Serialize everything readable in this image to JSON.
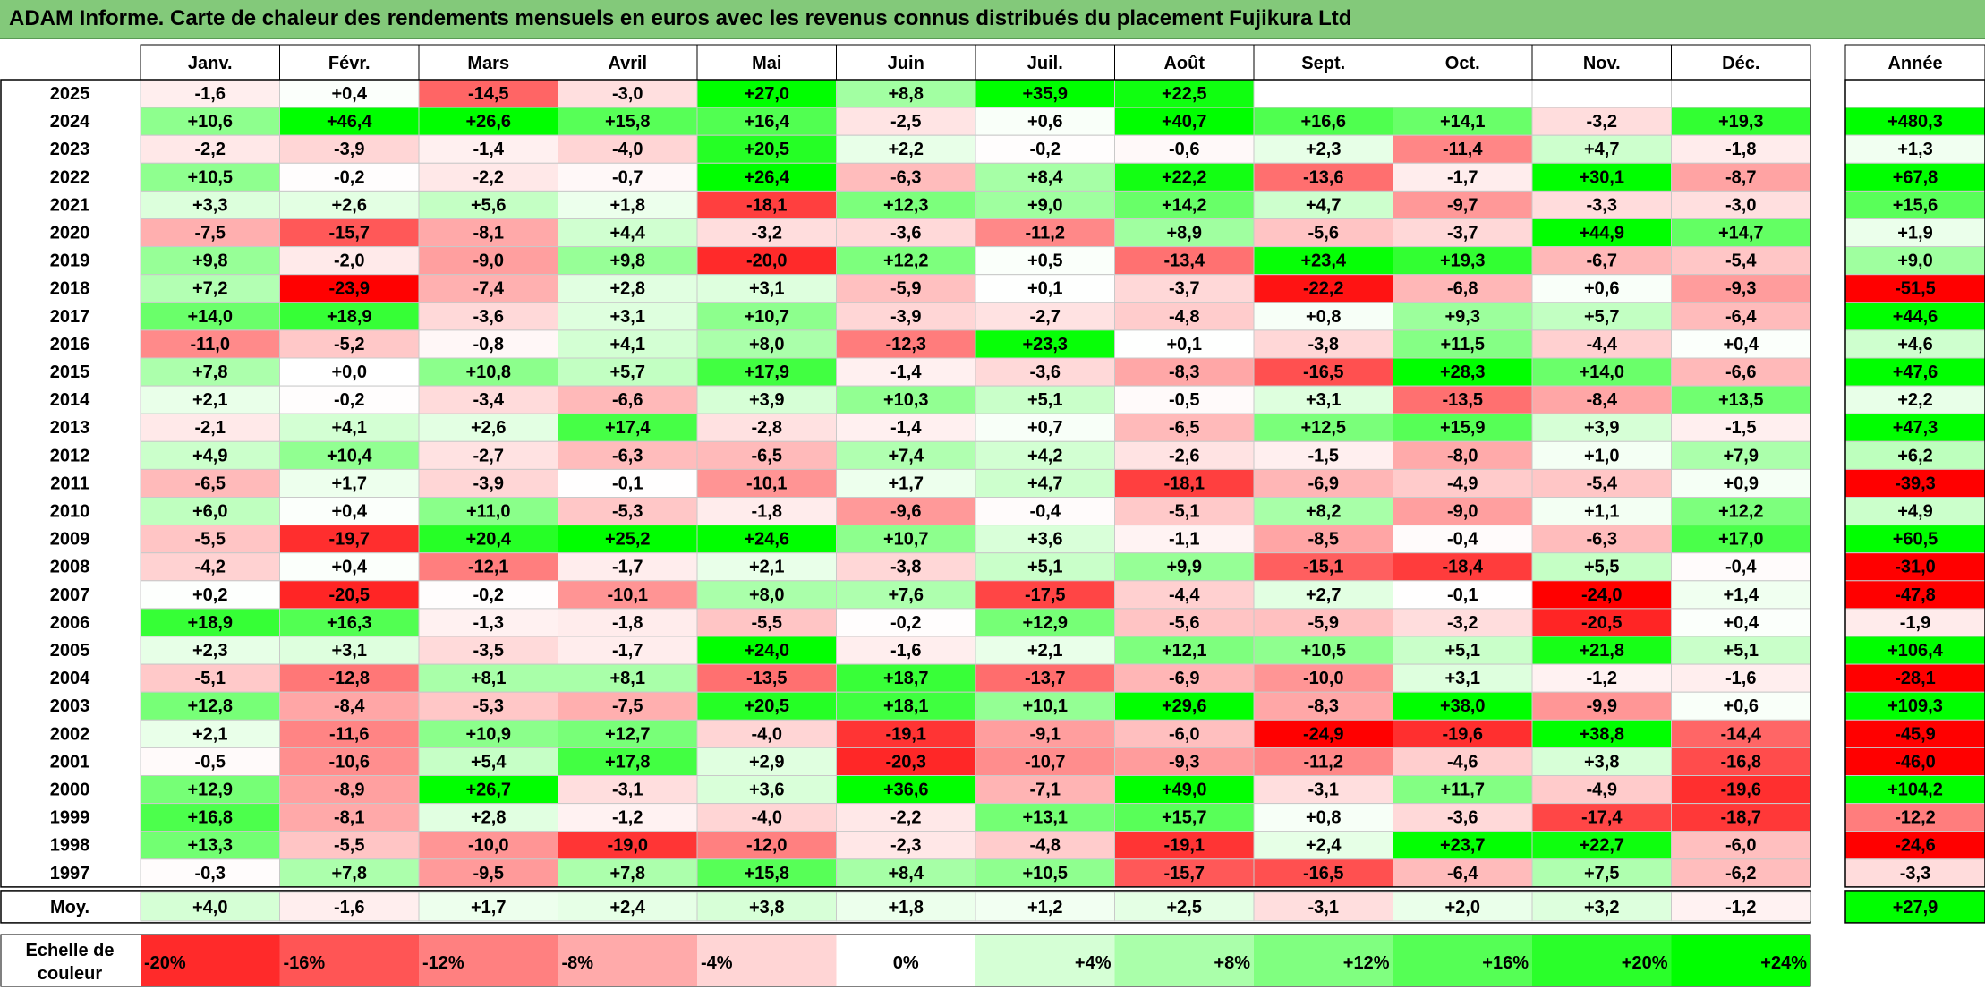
{
  "title": "ADAM Informe. Carte de chaleur des rendements mensuels en euros avec les revenus connus distribués du placement Fujikura Ltd",
  "colors": {
    "title_bar": "#83c97a",
    "negative_max": "#ff0000",
    "neutral": "#ffffff",
    "positive_max": "#00ff00"
  },
  "chart_data": {
    "type": "heatmap",
    "title": "ADAM Informe. Carte de chaleur des rendements mensuels en euros avec les revenus connus distribués du placement Fujikura Ltd",
    "months": [
      "Janv.",
      "Févr.",
      "Mars",
      "Avril",
      "Mai",
      "Juin",
      "Juil.",
      "Août",
      "Sept.",
      "Oct.",
      "Nov.",
      "Déc."
    ],
    "year_header": "Année",
    "avg_label": "Moy.",
    "rows": [
      {
        "year": "2025",
        "values": [
          "-1,6",
          "+0,4",
          "-14,5",
          "-3,0",
          "+27,0",
          "+8,8",
          "+35,9",
          "+22,5",
          "",
          "",
          "",
          ""
        ],
        "annual": ""
      },
      {
        "year": "2024",
        "values": [
          "+10,6",
          "+46,4",
          "+26,6",
          "+15,8",
          "+16,4",
          "-2,5",
          "+0,6",
          "+40,7",
          "+16,6",
          "+14,1",
          "-3,2",
          "+19,3"
        ],
        "annual": "+480,3"
      },
      {
        "year": "2023",
        "values": [
          "-2,2",
          "-3,9",
          "-1,4",
          "-4,0",
          "+20,5",
          "+2,2",
          "-0,2",
          "-0,6",
          "+2,3",
          "-11,4",
          "+4,7",
          "-1,8"
        ],
        "annual": "+1,3"
      },
      {
        "year": "2022",
        "values": [
          "+10,5",
          "-0,2",
          "-2,2",
          "-0,7",
          "+26,4",
          "-6,3",
          "+8,4",
          "+22,2",
          "-13,6",
          "-1,7",
          "+30,1",
          "-8,7"
        ],
        "annual": "+67,8"
      },
      {
        "year": "2021",
        "values": [
          "+3,3",
          "+2,6",
          "+5,6",
          "+1,8",
          "-18,1",
          "+12,3",
          "+9,0",
          "+14,2",
          "+4,7",
          "-9,7",
          "-3,3",
          "-3,0"
        ],
        "annual": "+15,6"
      },
      {
        "year": "2020",
        "values": [
          "-7,5",
          "-15,7",
          "-8,1",
          "+4,4",
          "-3,2",
          "-3,6",
          "-11,2",
          "+8,9",
          "-5,6",
          "-3,7",
          "+44,9",
          "+14,7"
        ],
        "annual": "+1,9"
      },
      {
        "year": "2019",
        "values": [
          "+9,8",
          "-2,0",
          "-9,0",
          "+9,8",
          "-20,0",
          "+12,2",
          "+0,5",
          "-13,4",
          "+23,4",
          "+19,3",
          "-6,7",
          "-5,4"
        ],
        "annual": "+9,0"
      },
      {
        "year": "2018",
        "values": [
          "+7,2",
          "-23,9",
          "-7,4",
          "+2,8",
          "+3,1",
          "-5,9",
          "+0,1",
          "-3,7",
          "-22,2",
          "-6,8",
          "+0,6",
          "-9,3"
        ],
        "annual": "-51,5"
      },
      {
        "year": "2017",
        "values": [
          "+14,0",
          "+18,9",
          "-3,6",
          "+3,1",
          "+10,7",
          "-3,9",
          "-2,7",
          "-4,8",
          "+0,8",
          "+9,3",
          "+5,7",
          "-6,4"
        ],
        "annual": "+44,6"
      },
      {
        "year": "2016",
        "values": [
          "-11,0",
          "-5,2",
          "-0,8",
          "+4,1",
          "+8,0",
          "-12,3",
          "+23,3",
          "+0,1",
          "-3,8",
          "+11,5",
          "-4,4",
          "+0,4"
        ],
        "annual": "+4,6"
      },
      {
        "year": "2015",
        "values": [
          "+7,8",
          "+0,0",
          "+10,8",
          "+5,7",
          "+17,9",
          "-1,4",
          "-3,6",
          "-8,3",
          "-16,5",
          "+28,3",
          "+14,0",
          "-6,6"
        ],
        "annual": "+47,6"
      },
      {
        "year": "2014",
        "values": [
          "+2,1",
          "-0,2",
          "-3,4",
          "-6,6",
          "+3,9",
          "+10,3",
          "+5,1",
          "-0,5",
          "+3,1",
          "-13,5",
          "-8,4",
          "+13,5"
        ],
        "annual": "+2,2"
      },
      {
        "year": "2013",
        "values": [
          "-2,1",
          "+4,1",
          "+2,6",
          "+17,4",
          "-2,8",
          "-1,4",
          "+0,7",
          "-6,5",
          "+12,5",
          "+15,9",
          "+3,9",
          "-1,5"
        ],
        "annual": "+47,3"
      },
      {
        "year": "2012",
        "values": [
          "+4,9",
          "+10,4",
          "-2,7",
          "-6,3",
          "-6,5",
          "+7,4",
          "+4,2",
          "-2,6",
          "-1,5",
          "-8,0",
          "+1,0",
          "+7,9"
        ],
        "annual": "+6,2"
      },
      {
        "year": "2011",
        "values": [
          "-6,5",
          "+1,7",
          "-3,9",
          "-0,1",
          "-10,1",
          "+1,7",
          "+4,7",
          "-18,1",
          "-6,9",
          "-4,9",
          "-5,4",
          "+0,9"
        ],
        "annual": "-39,3"
      },
      {
        "year": "2010",
        "values": [
          "+6,0",
          "+0,4",
          "+11,0",
          "-5,3",
          "-1,8",
          "-9,6",
          "-0,4",
          "-5,1",
          "+8,2",
          "-9,0",
          "+1,1",
          "+12,2"
        ],
        "annual": "+4,9"
      },
      {
        "year": "2009",
        "values": [
          "-5,5",
          "-19,7",
          "+20,4",
          "+25,2",
          "+24,6",
          "+10,7",
          "+3,6",
          "-1,1",
          "-8,5",
          "-0,4",
          "-6,3",
          "+17,0"
        ],
        "annual": "+60,5"
      },
      {
        "year": "2008",
        "values": [
          "-4,2",
          "+0,4",
          "-12,1",
          "-1,7",
          "+2,1",
          "-3,8",
          "+5,1",
          "+9,9",
          "-15,1",
          "-18,4",
          "+5,5",
          "-0,4"
        ],
        "annual": "-31,0"
      },
      {
        "year": "2007",
        "values": [
          "+0,2",
          "-20,5",
          "-0,2",
          "-10,1",
          "+8,0",
          "+7,6",
          "-17,5",
          "-4,4",
          "+2,7",
          "-0,1",
          "-24,0",
          "+1,4"
        ],
        "annual": "-47,8"
      },
      {
        "year": "2006",
        "values": [
          "+18,9",
          "+16,3",
          "-1,3",
          "-1,8",
          "-5,5",
          "-0,2",
          "+12,9",
          "-5,6",
          "-5,9",
          "-3,2",
          "-20,5",
          "+0,4"
        ],
        "annual": "-1,9"
      },
      {
        "year": "2005",
        "values": [
          "+2,3",
          "+3,1",
          "-3,5",
          "-1,7",
          "+24,0",
          "-1,6",
          "+2,1",
          "+12,1",
          "+10,5",
          "+5,1",
          "+21,8",
          "+5,1"
        ],
        "annual": "+106,4"
      },
      {
        "year": "2004",
        "values": [
          "-5,1",
          "-12,8",
          "+8,1",
          "+8,1",
          "-13,5",
          "+18,7",
          "-13,7",
          "-6,9",
          "-10,0",
          "+3,1",
          "-1,2",
          "-1,6"
        ],
        "annual": "-28,1"
      },
      {
        "year": "2003",
        "values": [
          "+12,8",
          "-8,4",
          "-5,3",
          "-7,5",
          "+20,5",
          "+18,1",
          "+10,1",
          "+29,6",
          "-8,3",
          "+38,0",
          "-9,9",
          "+0,6"
        ],
        "annual": "+109,3"
      },
      {
        "year": "2002",
        "values": [
          "+2,1",
          "-11,6",
          "+10,9",
          "+12,7",
          "-4,0",
          "-19,1",
          "-9,1",
          "-6,0",
          "-24,9",
          "-19,6",
          "+38,8",
          "-14,4"
        ],
        "annual": "-45,9"
      },
      {
        "year": "2001",
        "values": [
          "-0,5",
          "-10,6",
          "+5,4",
          "+17,8",
          "+2,9",
          "-20,3",
          "-10,7",
          "-9,3",
          "-11,2",
          "-4,6",
          "+3,8",
          "-16,8"
        ],
        "annual": "-46,0"
      },
      {
        "year": "2000",
        "values": [
          "+12,9",
          "-8,9",
          "+26,7",
          "-3,1",
          "+3,6",
          "+36,6",
          "-7,1",
          "+49,0",
          "-3,1",
          "+11,7",
          "-4,9",
          "-19,6"
        ],
        "annual": "+104,2"
      },
      {
        "year": "1999",
        "values": [
          "+16,8",
          "-8,1",
          "+2,8",
          "-1,2",
          "-4,0",
          "-2,2",
          "+13,1",
          "+15,7",
          "+0,8",
          "-3,6",
          "-17,4",
          "-18,7"
        ],
        "annual": "-12,2"
      },
      {
        "year": "1998",
        "values": [
          "+13,3",
          "-5,5",
          "-10,0",
          "-19,0",
          "-12,0",
          "-2,3",
          "-4,8",
          "-19,1",
          "+2,4",
          "+23,7",
          "+22,7",
          "-6,0"
        ],
        "annual": "-24,6"
      },
      {
        "year": "1997",
        "values": [
          "-0,3",
          "+7,8",
          "-9,5",
          "+7,8",
          "+15,8",
          "+8,4",
          "+10,5",
          "-15,7",
          "-16,5",
          "-6,4",
          "+7,5",
          "-6,2"
        ],
        "annual": "-3,3"
      }
    ],
    "averages": [
      "+4,0",
      "-1,6",
      "+1,7",
      "+2,4",
      "+3,8",
      "+1,8",
      "+1,2",
      "+2,5",
      "-3,1",
      "+2,0",
      "+3,2",
      "-1,2"
    ],
    "average_annual": "+27,9",
    "scale": {
      "label_line1": "Echelle de",
      "label_line2": "couleur",
      "labels": [
        "-20%",
        "-16%",
        "-12%",
        "-8%",
        "-4%",
        "0%",
        "+4%",
        "+8%",
        "+12%",
        "+16%",
        "+20%",
        "+24%"
      ],
      "values": [
        -20,
        -16,
        -12,
        -8,
        -4,
        0,
        4,
        8,
        12,
        16,
        20,
        24
      ]
    },
    "color_domain": [
      -24,
      0,
      24
    ]
  }
}
